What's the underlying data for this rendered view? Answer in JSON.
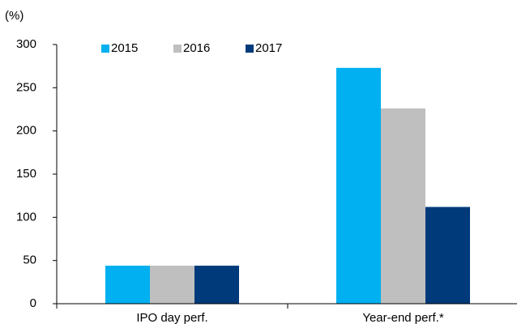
{
  "chart_data": {
    "type": "bar",
    "y_label": "(%)",
    "categories": [
      "IPO day perf.",
      "Year-end perf.*"
    ],
    "series": [
      {
        "name": "2015",
        "color": "#00b0f0",
        "values": [
          44,
          273
        ]
      },
      {
        "name": "2016",
        "color": "#bfbfbf",
        "values": [
          44,
          226
        ]
      },
      {
        "name": "2017",
        "color": "#003a7a",
        "values": [
          44,
          112
        ]
      }
    ],
    "ylim": [
      0,
      300
    ],
    "yticks": [
      0,
      50,
      100,
      150,
      200,
      250,
      300
    ],
    "grid": false,
    "legend": "top"
  }
}
